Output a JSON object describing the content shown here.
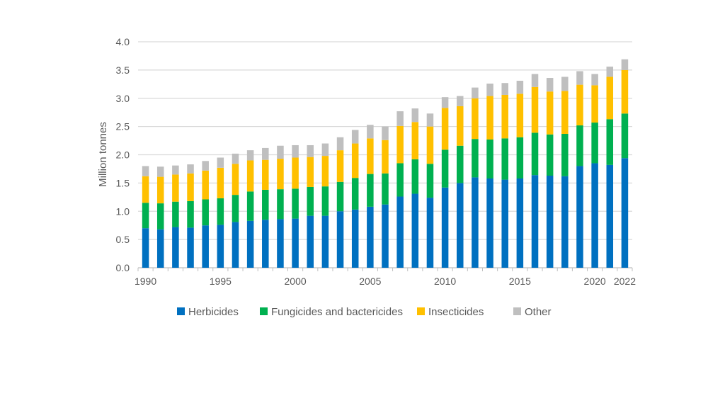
{
  "chart_data": {
    "type": "bar",
    "stacked": true,
    "title": "",
    "xlabel": "",
    "ylabel": "Million tonnes",
    "ylim": [
      0,
      4.0
    ],
    "yticks": [
      "0.0",
      "0.5",
      "1.0",
      "1.5",
      "2.0",
      "2.5",
      "3.0",
      "3.5",
      "4.0"
    ],
    "xtick_labels": [
      "1990",
      "1995",
      "2000",
      "2005",
      "2010",
      "2015",
      "2020",
      "2022"
    ],
    "grid": true,
    "legend_position": "bottom",
    "categories": [
      1990,
      1991,
      1992,
      1993,
      1994,
      1995,
      1996,
      1997,
      1998,
      1999,
      2000,
      2001,
      2002,
      2003,
      2004,
      2005,
      2006,
      2007,
      2008,
      2009,
      2010,
      2011,
      2012,
      2013,
      2014,
      2015,
      2016,
      2017,
      2018,
      2019,
      2020,
      2021,
      2022
    ],
    "series": [
      {
        "name": "Herbicides",
        "color": "#0070C0",
        "values": [
          0.7,
          0.68,
          0.72,
          0.71,
          0.75,
          0.76,
          0.81,
          0.83,
          0.85,
          0.86,
          0.87,
          0.92,
          0.92,
          1.0,
          1.03,
          1.08,
          1.12,
          1.26,
          1.31,
          1.24,
          1.42,
          1.5,
          1.6,
          1.58,
          1.56,
          1.58,
          1.64,
          1.63,
          1.62,
          1.8,
          1.85,
          1.82,
          1.94
        ]
      },
      {
        "name": "Fungicides and bactericides",
        "color": "#00B050",
        "values": [
          0.45,
          0.46,
          0.45,
          0.47,
          0.46,
          0.47,
          0.48,
          0.52,
          0.53,
          0.53,
          0.53,
          0.51,
          0.52,
          0.52,
          0.56,
          0.58,
          0.55,
          0.59,
          0.61,
          0.6,
          0.67,
          0.66,
          0.68,
          0.69,
          0.73,
          0.73,
          0.75,
          0.73,
          0.75,
          0.72,
          0.72,
          0.81,
          0.79
        ]
      },
      {
        "name": "Insecticides",
        "color": "#FFC000",
        "values": [
          0.47,
          0.47,
          0.48,
          0.49,
          0.51,
          0.54,
          0.55,
          0.55,
          0.53,
          0.54,
          0.55,
          0.53,
          0.54,
          0.56,
          0.61,
          0.63,
          0.59,
          0.66,
          0.66,
          0.66,
          0.74,
          0.7,
          0.72,
          0.77,
          0.77,
          0.77,
          0.81,
          0.76,
          0.76,
          0.72,
          0.66,
          0.75,
          0.77
        ]
      },
      {
        "name": "Other",
        "color": "#BFBFBF",
        "values": [
          0.18,
          0.18,
          0.16,
          0.16,
          0.17,
          0.18,
          0.18,
          0.18,
          0.21,
          0.23,
          0.22,
          0.21,
          0.22,
          0.23,
          0.24,
          0.24,
          0.24,
          0.26,
          0.24,
          0.23,
          0.19,
          0.18,
          0.19,
          0.22,
          0.21,
          0.23,
          0.23,
          0.24,
          0.25,
          0.24,
          0.2,
          0.18,
          0.19
        ]
      }
    ]
  }
}
